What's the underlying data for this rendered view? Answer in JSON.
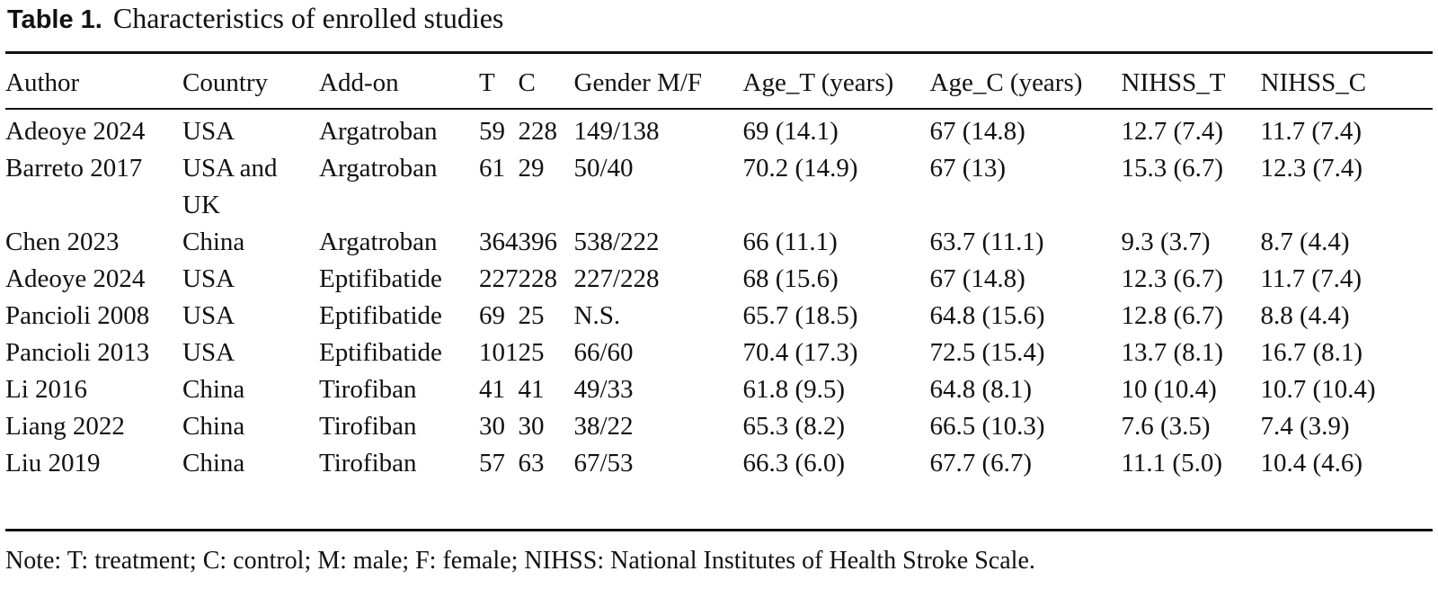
{
  "caption": {
    "label": "Table 1.",
    "title": "Characteristics of enrolled studies"
  },
  "table": {
    "columns": [
      "Author",
      "Country",
      "Add-on",
      "T",
      "C",
      "Gender M/F",
      "Age_T (years)",
      "Age_C (years)",
      "NIHSS_T",
      "NIHSS_C"
    ],
    "rows": [
      [
        "Adeoye 2024",
        "USA",
        "Argatroban",
        "59",
        "228",
        "149/138",
        "69 (14.1)",
        "67 (14.8)",
        "12.7 (7.4)",
        "11.7 (7.4)"
      ],
      [
        "Barreto 2017",
        "USA and UK",
        "Argatroban",
        "61",
        "29",
        "50/40",
        "70.2 (14.9)",
        "67 (13)",
        "15.3 (6.7)",
        "12.3 (7.4)"
      ],
      [
        "Chen 2023",
        "China",
        "Argatroban",
        "364",
        "396",
        "538/222",
        "66 (11.1)",
        "63.7 (11.1)",
        "9.3 (3.7)",
        "8.7 (4.4)"
      ],
      [
        "Adeoye 2024",
        "USA",
        "Eptifibatide",
        "227",
        "228",
        "227/228",
        "68 (15.6)",
        "67 (14.8)",
        "12.3 (6.7)",
        "11.7 (7.4)"
      ],
      [
        "Pancioli 2008",
        "USA",
        "Eptifibatide",
        "69",
        "25",
        "N.S.",
        "65.7 (18.5)",
        "64.8 (15.6)",
        "12.8 (6.7)",
        "8.8 (4.4)"
      ],
      [
        "Pancioli 2013",
        "USA",
        "Eptifibatide",
        "101",
        "25",
        "66/60",
        "70.4 (17.3)",
        "72.5 (15.4)",
        "13.7 (8.1)",
        "16.7 (8.1)"
      ],
      [
        "Li 2016",
        "China",
        "Tirofiban",
        "41",
        "41",
        "49/33",
        "61.8 (9.5)",
        "64.8 (8.1)",
        "10 (10.4)",
        "10.7 (10.4)"
      ],
      [
        "Liang 2022",
        "China",
        "Tirofiban",
        "30",
        "30",
        "38/22",
        "65.3 (8.2)",
        "66.5 (10.3)",
        "7.6 (3.5)",
        "7.4 (3.9)"
      ],
      [
        "Liu 2019",
        "China",
        "Tirofiban",
        "57",
        "63",
        "67/53",
        "66.3 (6.0)",
        "67.7 (6.7)",
        "11.1 (5.0)",
        "10.4 (4.6)"
      ]
    ]
  },
  "note": "Note: T: treatment; C: control; M: male; F: female; NIHSS: National Institutes of Health Stroke Scale."
}
